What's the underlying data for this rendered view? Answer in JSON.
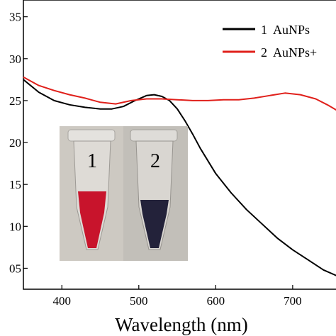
{
  "chart_data": {
    "type": "line",
    "title": "",
    "xlabel": "Wavelength (nm)",
    "ylabel": "",
    "xlim": [
      350,
      760
    ],
    "ylim": [
      0.025,
      0.37
    ],
    "x_ticks": [
      400,
      500,
      600,
      700
    ],
    "y_ticks": [
      0.05,
      0.1,
      0.15,
      0.2,
      0.25,
      0.3,
      0.35
    ],
    "y_tick_labels": [
      "05",
      "10",
      "15",
      "20",
      "25",
      "30",
      "35"
    ],
    "grid": false,
    "legend": "top-right",
    "series": [
      {
        "name": "1  AuNPs",
        "color": "#000000",
        "x": [
          350,
          370,
          390,
          410,
          430,
          450,
          465,
          480,
          495,
          510,
          520,
          530,
          540,
          550,
          560,
          570,
          580,
          600,
          620,
          640,
          660,
          680,
          700,
          720,
          740,
          760
        ],
        "y": [
          0.275,
          0.26,
          0.25,
          0.245,
          0.242,
          0.24,
          0.24,
          0.243,
          0.25,
          0.256,
          0.257,
          0.255,
          0.25,
          0.24,
          0.226,
          0.21,
          0.193,
          0.163,
          0.14,
          0.12,
          0.103,
          0.086,
          0.072,
          0.06,
          0.048,
          0.04
        ]
      },
      {
        "name": "2  AuNPs+",
        "color": "#e0201b",
        "x": [
          350,
          370,
          390,
          410,
          430,
          450,
          470,
          490,
          510,
          530,
          550,
          570,
          590,
          610,
          630,
          650,
          670,
          690,
          710,
          730,
          745,
          760
        ],
        "y": [
          0.278,
          0.268,
          0.262,
          0.257,
          0.253,
          0.248,
          0.246,
          0.25,
          0.252,
          0.252,
          0.251,
          0.25,
          0.25,
          0.251,
          0.251,
          0.253,
          0.256,
          0.259,
          0.257,
          0.252,
          0.245,
          0.237
        ]
      }
    ]
  },
  "inset": {
    "tube1_label": "1",
    "tube2_label": "2",
    "tube1_color": "#c8142c",
    "tube2_color": "#23223a"
  }
}
